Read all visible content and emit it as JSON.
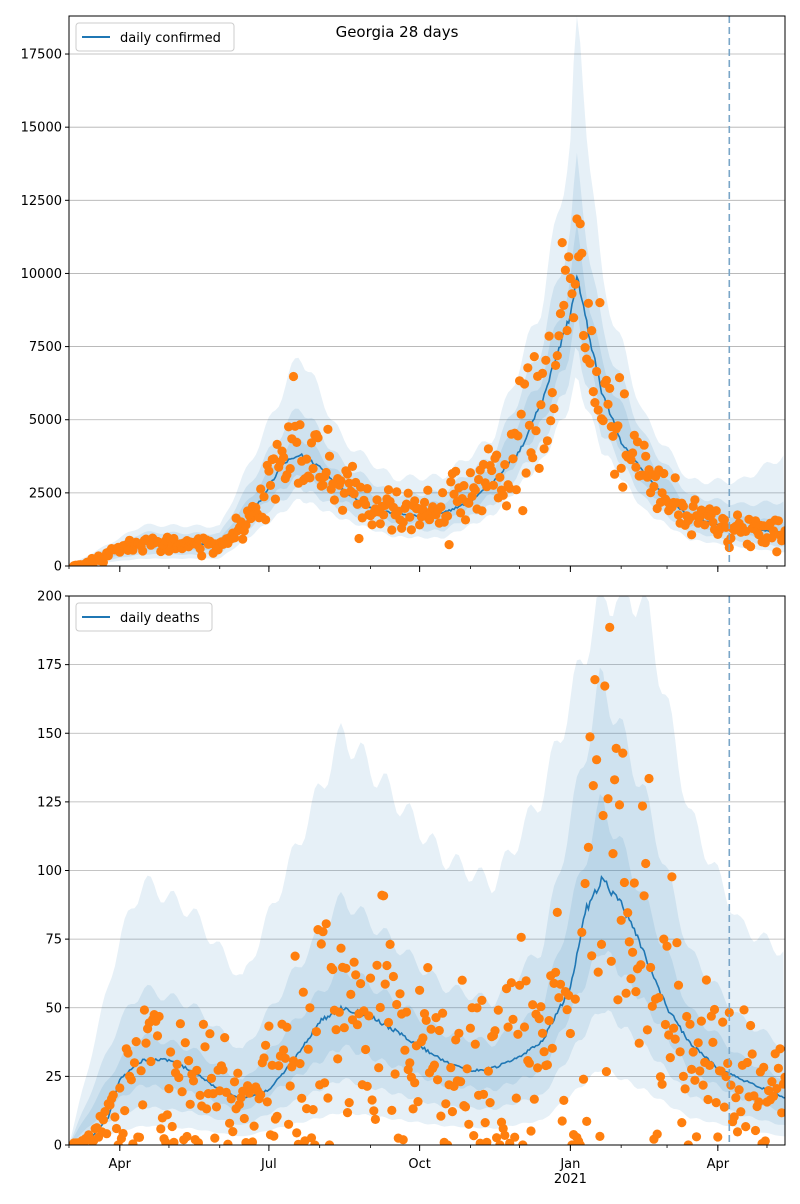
{
  "chart_data": [
    {
      "type": "line",
      "title": "Georgia 28 days",
      "xlabel": "",
      "ylabel": "",
      "legend": {
        "position": "top-left",
        "entries": [
          "daily confirmed"
        ]
      },
      "grid": "horizontal",
      "x_range": [
        "2020-03-01",
        "2021-05-12"
      ],
      "ylim": [
        0,
        18800
      ],
      "y_ticks": [
        0,
        2500,
        5000,
        7500,
        10000,
        12500,
        15000,
        17500
      ],
      "y_tick_labels": [
        "0",
        "2500",
        "5000",
        "7500",
        "10000",
        "12500",
        "15000",
        "17500"
      ],
      "x_ticks": [
        "2020-04-01",
        "2020-07-01",
        "2020-10-01",
        "2021-01-01",
        "2021-04-01"
      ],
      "x_tick_labels": [
        "",
        "",
        "",
        "",
        ""
      ],
      "vline": "2021-04-08",
      "mean_line_color": "#1f77b4",
      "points_color": "#ff7f0e",
      "band_color": "#1f77b4",
      "series": [
        {
          "name": "daily confirmed",
          "kind": "line",
          "x": [
            "2020-03-01",
            "2020-03-10",
            "2020-03-20",
            "2020-04-01",
            "2020-04-15",
            "2020-05-01",
            "2020-05-15",
            "2020-06-01",
            "2020-06-15",
            "2020-07-01",
            "2020-07-10",
            "2020-07-20",
            "2020-08-01",
            "2020-08-15",
            "2020-09-01",
            "2020-09-15",
            "2020-10-01",
            "2020-10-15",
            "2020-11-01",
            "2020-11-15",
            "2020-12-01",
            "2020-12-15",
            "2021-01-01",
            "2021-01-05",
            "2021-01-12",
            "2021-01-20",
            "2021-02-01",
            "2021-02-15",
            "2021-03-01",
            "2021-03-15",
            "2021-04-01",
            "2021-04-15",
            "2021-05-01",
            "2021-05-12"
          ],
          "values": [
            0,
            50,
            300,
            650,
            750,
            700,
            750,
            720,
            1300,
            2700,
            3500,
            3800,
            3400,
            2600,
            2000,
            1800,
            1700,
            1800,
            2200,
            2900,
            3900,
            5700,
            8600,
            9900,
            8000,
            6000,
            4200,
            3200,
            2300,
            1700,
            1400,
            1300,
            1200,
            1150
          ]
        }
      ],
      "bands": [
        {
          "name": "band-inner",
          "x": [
            "2020-03-01",
            "2020-04-15",
            "2020-06-01",
            "2020-07-01",
            "2020-07-20",
            "2020-08-15",
            "2020-09-15",
            "2020-10-15",
            "2020-11-15",
            "2020-12-15",
            "2021-01-01",
            "2021-01-05",
            "2021-01-20",
            "2021-02-15",
            "2021-03-15",
            "2021-04-15",
            "2021-05-12"
          ],
          "low": [
            0,
            550,
            530,
            2300,
            3100,
            2200,
            1500,
            1450,
            2450,
            4900,
            7400,
            8500,
            5200,
            2700,
            1400,
            1050,
            900
          ],
          "high": [
            0,
            950,
            900,
            3200,
            4500,
            3000,
            2100,
            2150,
            3350,
            6500,
            9800,
            11300,
            6900,
            3800,
            2000,
            1650,
            1500
          ]
        },
        {
          "name": "band-middle",
          "x": [
            "2020-03-01",
            "2020-04-15",
            "2020-06-01",
            "2020-07-01",
            "2020-07-20",
            "2020-08-15",
            "2020-09-15",
            "2020-10-15",
            "2020-11-15",
            "2020-12-15",
            "2021-01-01",
            "2021-01-05",
            "2021-01-20",
            "2021-02-15",
            "2021-03-15",
            "2021-04-15",
            "2021-05-12"
          ],
          "low": [
            0,
            400,
            380,
            1900,
            2700,
            1900,
            1250,
            1200,
            2100,
            4200,
            6500,
            7400,
            4600,
            2300,
            1150,
            850,
            650
          ],
          "high": [
            0,
            1150,
            1100,
            3900,
            5500,
            3500,
            2450,
            2500,
            3800,
            7600,
            11500,
            13600,
            8100,
            4400,
            2400,
            2100,
            2200
          ]
        },
        {
          "name": "band-outer",
          "x": [
            "2020-03-01",
            "2020-04-15",
            "2020-06-01",
            "2020-07-01",
            "2020-07-20",
            "2020-08-15",
            "2020-09-15",
            "2020-10-15",
            "2020-11-15",
            "2020-12-15",
            "2021-01-01",
            "2021-01-05",
            "2021-01-20",
            "2021-02-15",
            "2021-03-15",
            "2021-04-15",
            "2021-05-12"
          ],
          "low": [
            0,
            250,
            250,
            1500,
            2300,
            1600,
            1000,
            950,
            1750,
            3600,
            5600,
            6400,
            4000,
            1900,
            900,
            650,
            450
          ],
          "high": [
            0,
            1400,
            1350,
            4900,
            7300,
            4300,
            3000,
            3050,
            4400,
            9000,
            14500,
            18800,
            9800,
            5100,
            2900,
            2900,
            3800
          ]
        }
      ]
    },
    {
      "type": "line",
      "title": "",
      "xlabel": "",
      "ylabel": "",
      "legend": {
        "position": "top-left",
        "entries": [
          "daily deaths"
        ]
      },
      "grid": "horizontal",
      "x_range": [
        "2020-03-01",
        "2021-05-12"
      ],
      "ylim": [
        0,
        200
      ],
      "y_ticks": [
        0,
        25,
        50,
        75,
        100,
        125,
        150,
        175,
        200
      ],
      "y_tick_labels": [
        "0",
        "25",
        "50",
        "75",
        "100",
        "125",
        "150",
        "175",
        "200"
      ],
      "x_ticks": [
        "2020-04-01",
        "2020-07-01",
        "2020-10-01",
        "2021-01-01",
        "2021-04-01"
      ],
      "x_tick_labels": [
        "Apr",
        "Jul",
        "Oct",
        "Jan",
        "Apr"
      ],
      "x_sub_labels": [
        "",
        "",
        "",
        "2021",
        ""
      ],
      "vline": "2021-04-08",
      "mean_line_color": "#1f77b4",
      "points_color": "#ff7f0e",
      "band_color": "#1f77b4",
      "series": [
        {
          "name": "daily deaths",
          "kind": "line",
          "x": [
            "2020-03-01",
            "2020-03-15",
            "2020-03-25",
            "2020-04-01",
            "2020-04-15",
            "2020-05-01",
            "2020-05-15",
            "2020-06-01",
            "2020-06-15",
            "2020-07-01",
            "2020-07-15",
            "2020-08-01",
            "2020-08-15",
            "2020-09-01",
            "2020-09-15",
            "2020-10-01",
            "2020-10-15",
            "2020-11-01",
            "2020-11-15",
            "2020-12-01",
            "2020-12-15",
            "2021-01-01",
            "2021-01-10",
            "2021-01-20",
            "2021-02-01",
            "2021-02-15",
            "2021-03-01",
            "2021-03-15",
            "2021-04-01",
            "2021-04-15",
            "2021-05-01",
            "2021-05-12"
          ],
          "values": [
            0,
            3,
            10,
            24,
            31,
            31,
            27,
            20,
            17,
            20,
            30,
            45,
            50,
            47,
            42,
            36,
            31,
            27,
            28,
            32,
            38,
            57,
            85,
            97,
            88,
            70,
            50,
            37,
            28,
            24,
            20,
            17
          ]
        }
      ],
      "bands": [
        {
          "name": "band-inner",
          "x": [
            "2020-03-01",
            "2020-04-01",
            "2020-04-15",
            "2020-05-15",
            "2020-06-15",
            "2020-08-15",
            "2020-10-15",
            "2020-11-15",
            "2020-12-15",
            "2021-01-20",
            "2021-02-15",
            "2021-03-15",
            "2021-04-15",
            "2021-05-12"
          ],
          "low": [
            0,
            17,
            22,
            19,
            12,
            36,
            22,
            20,
            27,
            72,
            52,
            27,
            17,
            12
          ],
          "high": [
            0,
            31,
            40,
            35,
            23,
            65,
            41,
            37,
            50,
            125,
            90,
            49,
            32,
            24
          ]
        },
        {
          "name": "band-middle",
          "x": [
            "2020-03-01",
            "2020-04-01",
            "2020-04-15",
            "2020-05-15",
            "2020-06-15",
            "2020-08-15",
            "2020-10-15",
            "2020-11-15",
            "2020-12-15",
            "2021-01-20",
            "2021-02-15",
            "2021-03-15",
            "2021-04-15",
            "2021-05-12"
          ],
          "low": [
            0,
            11,
            14,
            12,
            7,
            24,
            14,
            13,
            18,
            50,
            36,
            18,
            11,
            7
          ],
          "high": [
            0,
            45,
            57,
            51,
            34,
            90,
            58,
            52,
            72,
            170,
            128,
            70,
            46,
            36
          ]
        },
        {
          "name": "band-outer",
          "x": [
            "2020-03-01",
            "2020-04-01",
            "2020-04-15",
            "2020-05-15",
            "2020-06-15",
            "2020-08-15",
            "2020-10-15",
            "2020-11-15",
            "2020-12-15",
            "2021-01-20",
            "2021-02-15",
            "2021-03-15",
            "2021-04-15",
            "2021-05-12"
          ],
          "low": [
            0,
            5,
            7,
            6,
            3,
            12,
            7,
            6,
            9,
            28,
            20,
            10,
            6,
            3
          ],
          "high": [
            0,
            75,
            96,
            85,
            60,
            150,
            105,
            95,
            128,
            200,
            200,
            120,
            80,
            70
          ]
        }
      ]
    }
  ]
}
